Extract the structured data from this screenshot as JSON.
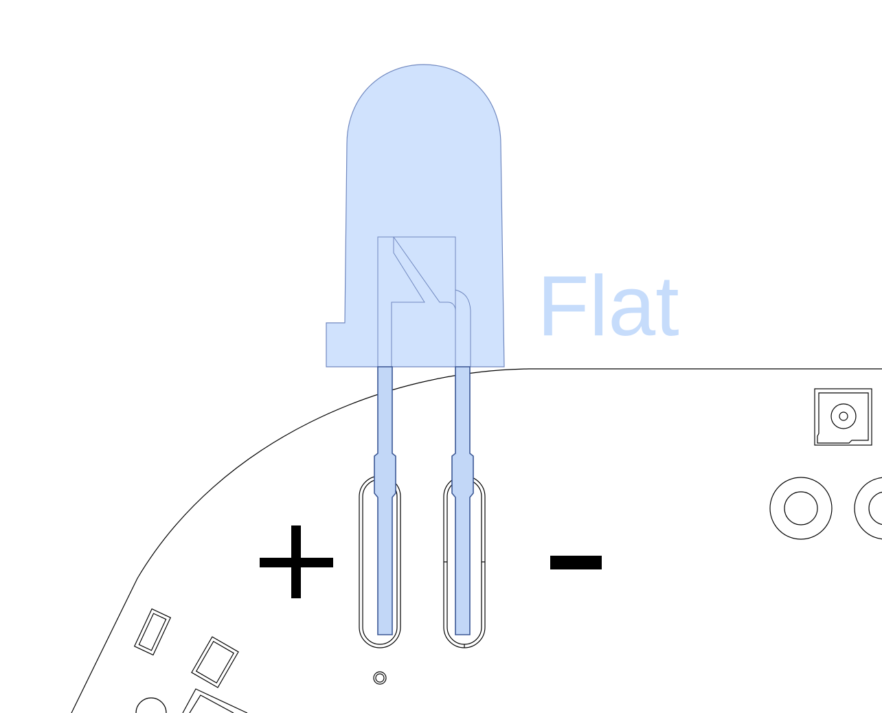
{
  "labels": {
    "flat": "Flat",
    "plus": "+",
    "minus": "−"
  },
  "colors": {
    "led_fill": "#cce0fd",
    "led_outline": "#6f87bf",
    "flat_text": "#c6dcfb",
    "pcb_line": "#000000",
    "polarity_marks": "#000000"
  }
}
